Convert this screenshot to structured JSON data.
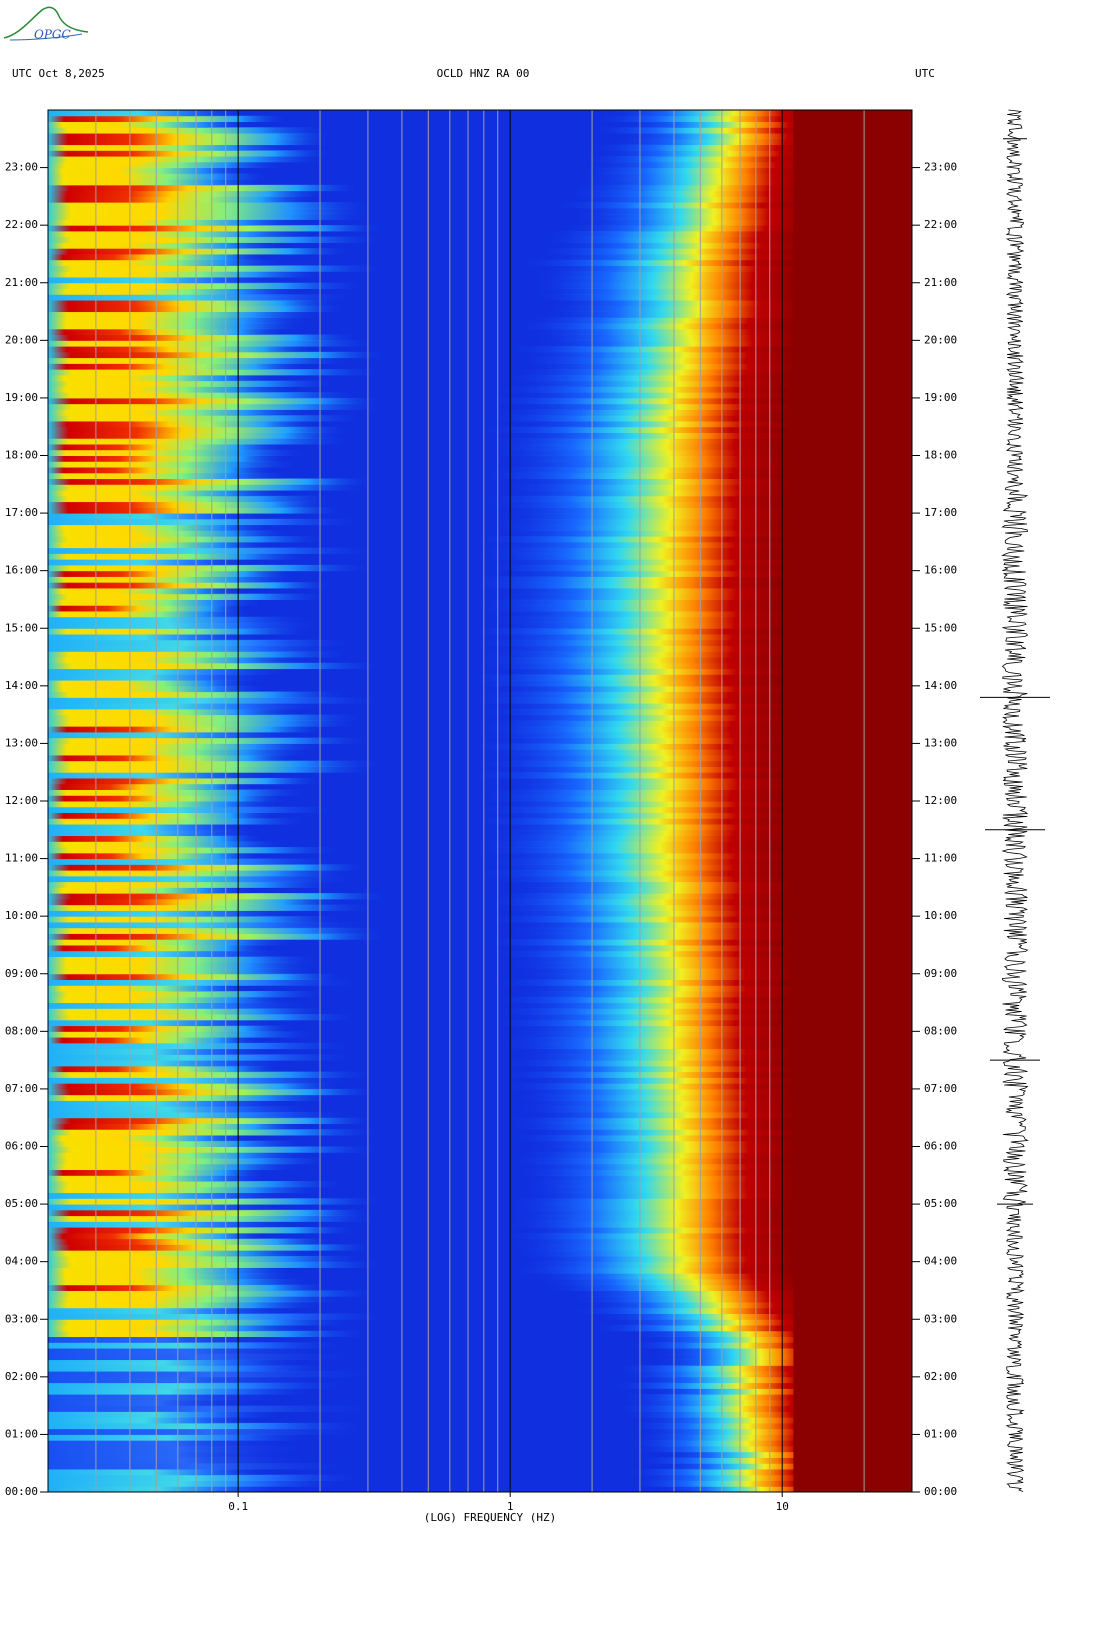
{
  "logo": "OPGC",
  "chart_data": {
    "type": "spectrogram",
    "title": "OCLD HNZ RA 00",
    "date_label": "UTC  Oct 8,2025",
    "time_zone": "UTC",
    "x_label": "(LOG) FREQUENCY (HZ)",
    "x_log": true,
    "xlim": [
      0.02,
      30
    ],
    "xticks": [
      0.1,
      1,
      10
    ],
    "xgrid": [
      0.03,
      0.04,
      0.05,
      0.06,
      0.07,
      0.08,
      0.09,
      0.2,
      0.3,
      0.4,
      0.5,
      0.6,
      0.7,
      0.8,
      0.9,
      2,
      3,
      4,
      5,
      6,
      7,
      8,
      9,
      20
    ],
    "ylim": [
      0,
      24
    ],
    "yticks": [
      {
        "value": 0,
        "label": "00:00"
      },
      {
        "value": 1,
        "label": "01:00"
      },
      {
        "value": 2,
        "label": "02:00"
      },
      {
        "value": 3,
        "label": "03:00"
      },
      {
        "value": 4,
        "label": "04:00"
      },
      {
        "value": 5,
        "label": "05:00"
      },
      {
        "value": 6,
        "label": "06:00"
      },
      {
        "value": 7,
        "label": "07:00"
      },
      {
        "value": 8,
        "label": "08:00"
      },
      {
        "value": 9,
        "label": "09:00"
      },
      {
        "value": 10,
        "label": "10:00"
      },
      {
        "value": 11,
        "label": "11:00"
      },
      {
        "value": 12,
        "label": "12:00"
      },
      {
        "value": 13,
        "label": "13:00"
      },
      {
        "value": 14,
        "label": "14:00"
      },
      {
        "value": 15,
        "label": "15:00"
      },
      {
        "value": 16,
        "label": "16:00"
      },
      {
        "value": 17,
        "label": "17:00"
      },
      {
        "value": 18,
        "label": "18:00"
      },
      {
        "value": 19,
        "label": "19:00"
      },
      {
        "value": 20,
        "label": "20:00"
      },
      {
        "value": 21,
        "label": "21:00"
      },
      {
        "value": 22,
        "label": "22:00"
      },
      {
        "value": 23,
        "label": "23:00"
      }
    ]
  }
}
